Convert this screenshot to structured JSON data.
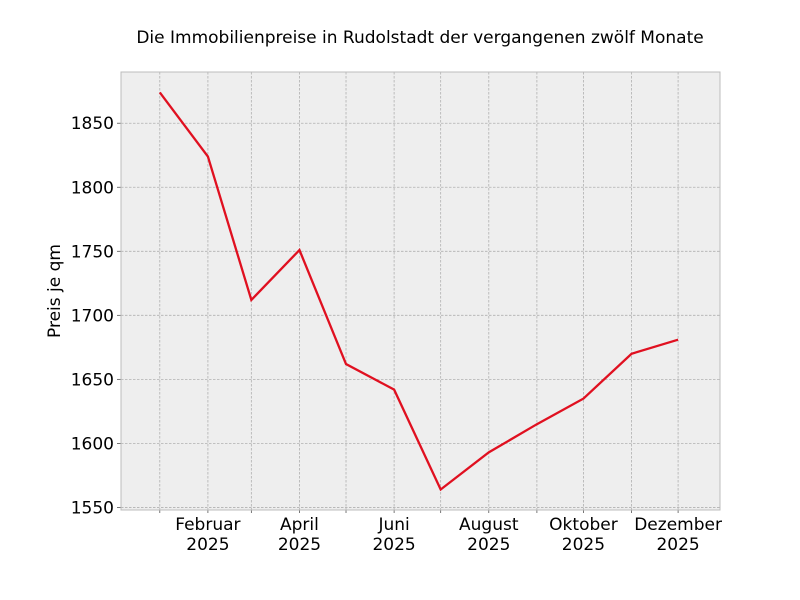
{
  "chart_data": {
    "type": "line",
    "title": "Die Immobilienpreise in Rudolstadt der vergangenen zwölf Monate",
    "xlabel": "",
    "ylabel": "Preis je qm",
    "x": [
      "2025-01",
      "2025-02",
      "2025-03",
      "2025-04",
      "2025-05",
      "2025-06",
      "2025-07",
      "2025-08",
      "2025-09",
      "2025-10",
      "2025-11",
      "2025-12"
    ],
    "series": [
      {
        "values": [
          1874,
          1824,
          1712,
          1751,
          1662,
          1642,
          1564,
          1593,
          1615,
          1635,
          1670,
          1681
        ]
      }
    ],
    "x_ticks": [
      {
        "x": "2025-02",
        "label": [
          "Februar",
          "2025"
        ]
      },
      {
        "x": "2025-04",
        "label": [
          "April",
          "2025"
        ]
      },
      {
        "x": "2025-06",
        "label": [
          "Juni",
          "2025"
        ]
      },
      {
        "x": "2025-08",
        "label": [
          "August",
          "2025"
        ]
      },
      {
        "x": "2025-10",
        "label": [
          "Oktober",
          "2025"
        ]
      },
      {
        "x": "2025-12",
        "label": [
          "Dezember",
          "2025"
        ]
      }
    ],
    "y_ticks": [
      1550,
      1600,
      1650,
      1700,
      1750,
      1800,
      1850
    ],
    "ylim": [
      1548,
      1890
    ],
    "xlim": [
      "2024-12-07",
      "2025-12-28"
    ],
    "grid": true,
    "colors": {
      "line": "#e01020",
      "plot_background": "#eeeeee",
      "grid": "#b0b0b0",
      "frame": "#bcbcbc"
    }
  }
}
